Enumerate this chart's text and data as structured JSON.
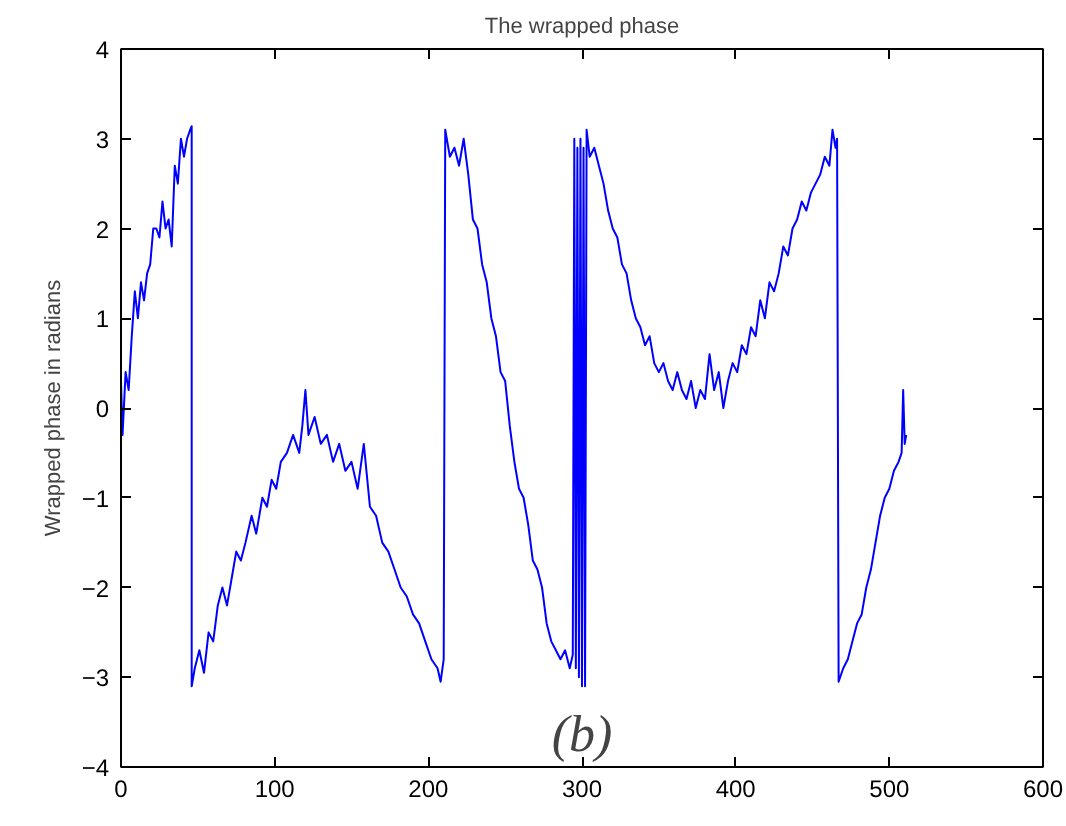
{
  "chart_data": {
    "type": "line",
    "title": "The wrapped phase",
    "ylabel": "Wrapped phase in radians",
    "annotations": [
      "(b)"
    ],
    "x": [
      0,
      1,
      3,
      5,
      7,
      9,
      11,
      13,
      15,
      17,
      19,
      21,
      23,
      25,
      27,
      29,
      31,
      33,
      35,
      37,
      39,
      41,
      43,
      45,
      46,
      46,
      48,
      51,
      54,
      57,
      60,
      63,
      66,
      69,
      72,
      75,
      78,
      81,
      85,
      88,
      92,
      95,
      98,
      101,
      104,
      108,
      112,
      116,
      118,
      120,
      122,
      126,
      130,
      134,
      138,
      142,
      146,
      150,
      154,
      158,
      162,
      166,
      170,
      174,
      178,
      182,
      186,
      190,
      194,
      198,
      202,
      206,
      208,
      210,
      211,
      214,
      217,
      220,
      223,
      226,
      229,
      232,
      235,
      238,
      241,
      244,
      247,
      250,
      253,
      256,
      259,
      262,
      265,
      268,
      271,
      274,
      277,
      280,
      283,
      286,
      289,
      292,
      294,
      295,
      296,
      297,
      298,
      299,
      300,
      301,
      302,
      303,
      305,
      308,
      311,
      314,
      317,
      320,
      323,
      326,
      329,
      332,
      335,
      338,
      341,
      344,
      347,
      350,
      353,
      356,
      359,
      362,
      365,
      368,
      371,
      374,
      377,
      380,
      383,
      386,
      389,
      392,
      395,
      398,
      401,
      404,
      407,
      410,
      413,
      416,
      419,
      422,
      425,
      428,
      431,
      434,
      437,
      440,
      443,
      446,
      449,
      452,
      455,
      458,
      461,
      463,
      465,
      466,
      467,
      470,
      473,
      476,
      479,
      482,
      485,
      488,
      491,
      494,
      497,
      500,
      503,
      506,
      508,
      509,
      510,
      511
    ],
    "series": [
      {
        "color": "#0000ff",
        "values": [
          0.3,
          -0.3,
          0.4,
          0.2,
          0.8,
          1.3,
          1.0,
          1.4,
          1.2,
          1.5,
          1.6,
          2.0,
          2.0,
          1.9,
          2.3,
          2.0,
          2.1,
          1.8,
          2.7,
          2.5,
          3.0,
          2.8,
          3.0,
          3.1,
          3.14,
          -3.1,
          -2.9,
          -2.7,
          -2.95,
          -2.5,
          -2.6,
          -2.2,
          -2.0,
          -2.2,
          -1.9,
          -1.6,
          -1.7,
          -1.5,
          -1.2,
          -1.4,
          -1.0,
          -1.1,
          -0.8,
          -0.9,
          -0.6,
          -0.5,
          -0.3,
          -0.5,
          -0.2,
          0.2,
          -0.3,
          -0.1,
          -0.4,
          -0.3,
          -0.6,
          -0.4,
          -0.7,
          -0.6,
          -0.9,
          -0.4,
          -1.1,
          -1.2,
          -1.5,
          -1.6,
          -1.8,
          -2.0,
          -2.1,
          -2.3,
          -2.4,
          -2.6,
          -2.8,
          -2.9,
          -3.05,
          -2.8,
          3.1,
          2.8,
          2.9,
          2.7,
          3.0,
          2.6,
          2.1,
          2.0,
          1.6,
          1.4,
          1.0,
          0.8,
          0.4,
          0.3,
          -0.2,
          -0.6,
          -0.9,
          -1.0,
          -1.3,
          -1.7,
          -1.8,
          -2.0,
          -2.4,
          -2.6,
          -2.7,
          -2.8,
          -2.7,
          -2.9,
          -2.75,
          3.0,
          -2.9,
          2.9,
          -3.0,
          3.0,
          -3.1,
          2.9,
          -3.1,
          3.1,
          2.8,
          2.9,
          2.7,
          2.5,
          2.2,
          2.0,
          1.9,
          1.6,
          1.5,
          1.2,
          1.0,
          0.9,
          0.7,
          0.8,
          0.5,
          0.4,
          0.5,
          0.3,
          0.2,
          0.4,
          0.2,
          0.1,
          0.3,
          0.0,
          0.2,
          0.1,
          0.6,
          0.2,
          0.4,
          0.0,
          0.3,
          0.5,
          0.4,
          0.7,
          0.6,
          0.9,
          0.8,
          1.2,
          1.0,
          1.4,
          1.3,
          1.5,
          1.8,
          1.7,
          2.0,
          2.1,
          2.3,
          2.2,
          2.4,
          2.5,
          2.6,
          2.8,
          2.7,
          3.1,
          2.9,
          3.0,
          -3.05,
          -2.9,
          -2.8,
          -2.6,
          -2.4,
          -2.3,
          -2.0,
          -1.8,
          -1.5,
          -1.2,
          -1.0,
          -0.9,
          -0.7,
          -0.6,
          -0.5,
          0.2,
          -0.4,
          -0.3
        ]
      }
    ],
    "xlim": [
      0,
      600
    ],
    "ylim": [
      -4,
      4
    ],
    "xticks": [
      0,
      100,
      200,
      300,
      400,
      500,
      600
    ],
    "yticks": [
      -4,
      -3,
      -2,
      -1,
      0,
      1,
      2,
      3,
      4
    ],
    "grid": false,
    "marker": "none",
    "line_style": "solid"
  }
}
